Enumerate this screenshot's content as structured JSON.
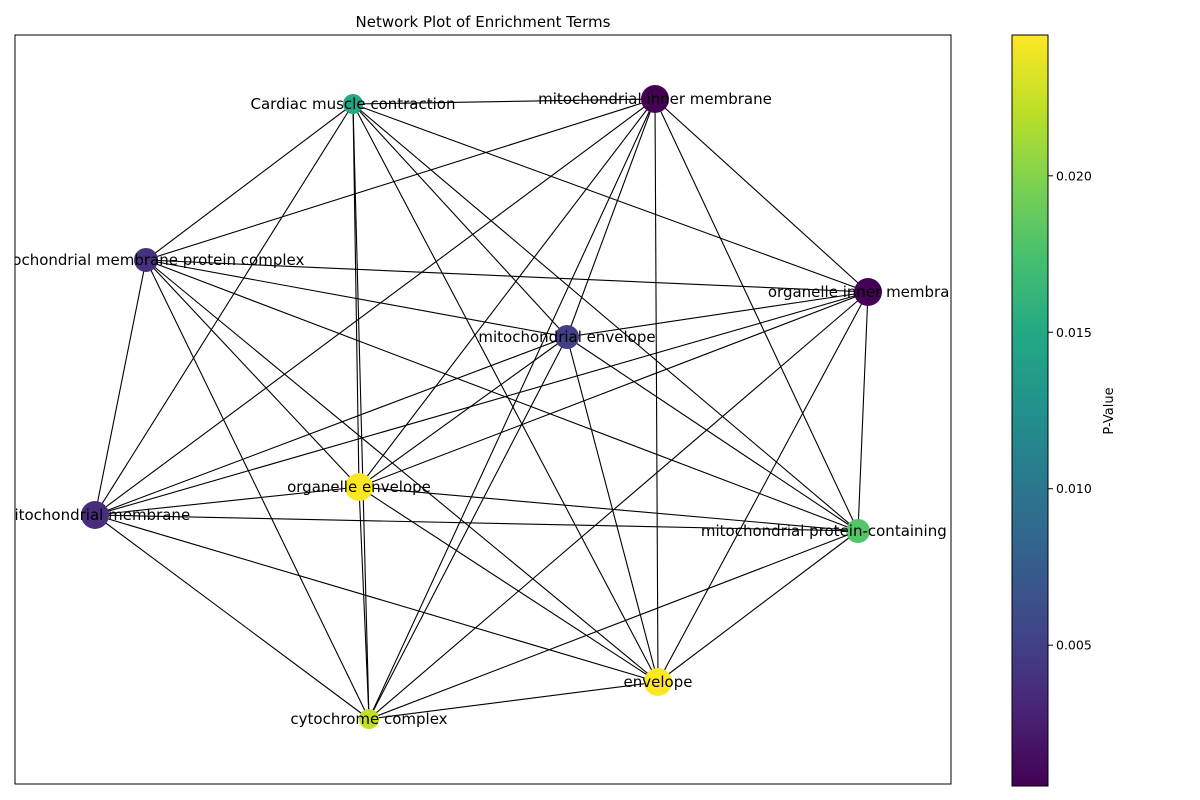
{
  "title": "Network Plot of Enrichment Terms",
  "colorbar": {
    "label": "P-Value",
    "ticks": [
      {
        "value": 0.005,
        "label": "0.005"
      },
      {
        "value": 0.01,
        "label": "0.010"
      },
      {
        "value": 0.015,
        "label": "0.015"
      },
      {
        "value": 0.02,
        "label": "0.020"
      }
    ],
    "range": [
      0.0005,
      0.0245
    ],
    "colormap": "viridis"
  },
  "nodes": [
    {
      "id": "cardiac",
      "label": "Cardiac muscle contraction",
      "pvalue": 0.0145,
      "color": "#22a884",
      "size": "small"
    },
    {
      "id": "mim",
      "label": "mitochondrial inner membrane",
      "pvalue": 0.0006,
      "color": "#440154",
      "size": "large"
    },
    {
      "id": "mmpc",
      "label": "mitochondrial membrane protein complex",
      "pvalue": 0.0035,
      "color": "#46317e",
      "size": "medium"
    },
    {
      "id": "oim",
      "label": "organelle inner membrane",
      "pvalue": 0.0007,
      "color": "#440256",
      "size": "large"
    },
    {
      "id": "menv",
      "label": "mitochondrial envelope",
      "pvalue": 0.0045,
      "color": "#433e85",
      "size": "medium"
    },
    {
      "id": "oenv",
      "label": "organelle envelope",
      "pvalue": 0.0245,
      "color": "#fde725",
      "size": "large"
    },
    {
      "id": "mm",
      "label": "mitochondrial membrane",
      "pvalue": 0.003,
      "color": "#472d7b",
      "size": "large"
    },
    {
      "id": "mpc",
      "label": "mitochondrial protein-containing complex",
      "pvalue": 0.0185,
      "color": "#54c568",
      "size": "medium"
    },
    {
      "id": "env",
      "label": "envelope",
      "pvalue": 0.0245,
      "color": "#fde725",
      "size": "large"
    },
    {
      "id": "cyto",
      "label": "cytochrome complex",
      "pvalue": 0.0225,
      "color": "#c0df25",
      "size": "small"
    }
  ],
  "edges": [
    [
      "cardiac",
      "mim"
    ],
    [
      "cardiac",
      "mmpc"
    ],
    [
      "cardiac",
      "oim"
    ],
    [
      "cardiac",
      "menv"
    ],
    [
      "cardiac",
      "oenv"
    ],
    [
      "cardiac",
      "mm"
    ],
    [
      "cardiac",
      "mpc"
    ],
    [
      "cardiac",
      "env"
    ],
    [
      "cardiac",
      "cyto"
    ],
    [
      "mim",
      "mmpc"
    ],
    [
      "mim",
      "oim"
    ],
    [
      "mim",
      "menv"
    ],
    [
      "mim",
      "oenv"
    ],
    [
      "mim",
      "mm"
    ],
    [
      "mim",
      "mpc"
    ],
    [
      "mim",
      "env"
    ],
    [
      "mim",
      "cyto"
    ],
    [
      "mmpc",
      "oim"
    ],
    [
      "mmpc",
      "menv"
    ],
    [
      "mmpc",
      "oenv"
    ],
    [
      "mmpc",
      "mm"
    ],
    [
      "mmpc",
      "mpc"
    ],
    [
      "mmpc",
      "env"
    ],
    [
      "mmpc",
      "cyto"
    ],
    [
      "oim",
      "menv"
    ],
    [
      "oim",
      "oenv"
    ],
    [
      "oim",
      "mm"
    ],
    [
      "oim",
      "mpc"
    ],
    [
      "oim",
      "env"
    ],
    [
      "oim",
      "cyto"
    ],
    [
      "menv",
      "oenv"
    ],
    [
      "menv",
      "mm"
    ],
    [
      "menv",
      "mpc"
    ],
    [
      "menv",
      "env"
    ],
    [
      "menv",
      "cyto"
    ],
    [
      "oenv",
      "mm"
    ],
    [
      "oenv",
      "mpc"
    ],
    [
      "oenv",
      "env"
    ],
    [
      "oenv",
      "cyto"
    ],
    [
      "mm",
      "mpc"
    ],
    [
      "mm",
      "env"
    ],
    [
      "mm",
      "cyto"
    ],
    [
      "mpc",
      "env"
    ],
    [
      "mpc",
      "cyto"
    ],
    [
      "env",
      "cyto"
    ]
  ]
}
